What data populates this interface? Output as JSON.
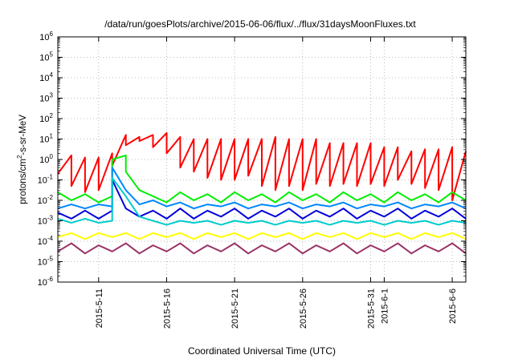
{
  "chart_data": {
    "type": "line",
    "title": "/data/run/goesPlots/archive/2015-06-06/flux/../flux/31daysMoonFluxes.txt",
    "xlabel": "Coordinated Universal Time (UTC)",
    "ylabel_parts": {
      "pre": "protons/cm",
      "sup": "2",
      "post": "-s-sr-MeV"
    },
    "yscale": "log",
    "ylim_exp": [
      -6,
      6
    ],
    "y_ticks": [
      {
        "base": "10",
        "exp": "-6",
        "v": -6
      },
      {
        "base": "10",
        "exp": "-5",
        "v": -5
      },
      {
        "base": "10",
        "exp": "-4",
        "v": -4
      },
      {
        "base": "10",
        "exp": "-3",
        "v": -3
      },
      {
        "base": "10",
        "exp": "-2",
        "v": -2
      },
      {
        "base": "10",
        "exp": "-1",
        "v": -1
      },
      {
        "base": "10",
        "exp": "0",
        "v": 0
      },
      {
        "base": "10",
        "exp": "1",
        "v": 1
      },
      {
        "base": "10",
        "exp": "2",
        "v": 2
      },
      {
        "base": "10",
        "exp": "3",
        "v": 3
      },
      {
        "base": "10",
        "exp": "4",
        "v": 4
      },
      {
        "base": "10",
        "exp": "5",
        "v": 5
      },
      {
        "base": "10",
        "exp": "6",
        "v": 6
      }
    ],
    "x_range": [
      "2015-05-08",
      "2015-06-07"
    ],
    "x_ticks": [
      {
        "label": "2015-5-11",
        "date": "2015-05-11"
      },
      {
        "label": "2015-5-16",
        "date": "2015-05-16"
      },
      {
        "label": "2015-5-21",
        "date": "2015-05-21"
      },
      {
        "label": "2015-5-26",
        "date": "2015-05-26"
      },
      {
        "label": "2015-5-31",
        "date": "2015-05-31"
      },
      {
        "label": "2015-6-1",
        "date": "2015-06-01"
      },
      {
        "label": "2015-6-6",
        "date": "2015-06-06"
      }
    ],
    "grid": true,
    "series": [
      {
        "color": "#ff0000",
        "values": [
          [
            "2015-05-08",
            -0.7
          ],
          [
            "2015-05-09",
            0.2
          ],
          [
            "2015-05-09",
            -1.3
          ],
          [
            "2015-05-10",
            0.1
          ],
          [
            "2015-05-10",
            -1.6
          ],
          [
            "2015-05-11",
            0.1
          ],
          [
            "2015-05-11",
            -1.5
          ],
          [
            "2015-05-12",
            0.3
          ],
          [
            "2015-05-12",
            -0.3
          ],
          [
            "2015-05-13",
            1.2
          ],
          [
            "2015-05-13",
            0.7
          ],
          [
            "2015-05-14",
            1.1
          ],
          [
            "2015-05-14",
            0.9
          ],
          [
            "2015-05-15",
            1.2
          ],
          [
            "2015-05-15",
            0.6
          ],
          [
            "2015-05-16",
            1.3
          ],
          [
            "2015-05-16",
            0.3
          ],
          [
            "2015-05-17",
            1.1
          ],
          [
            "2015-05-17",
            -0.4
          ],
          [
            "2015-05-18",
            1.0
          ],
          [
            "2015-05-18",
            -0.6
          ],
          [
            "2015-05-19",
            1.0
          ],
          [
            "2015-05-19",
            -0.9
          ],
          [
            "2015-05-20",
            1.0
          ],
          [
            "2015-05-20",
            -1.0
          ],
          [
            "2015-05-21",
            1.0
          ],
          [
            "2015-05-21",
            -1.0
          ],
          [
            "2015-05-22",
            1.0
          ],
          [
            "2015-05-22",
            -0.8
          ],
          [
            "2015-05-23",
            1.0
          ],
          [
            "2015-05-23",
            -1.3
          ],
          [
            "2015-05-24",
            1.1
          ],
          [
            "2015-05-24",
            -1.5
          ],
          [
            "2015-05-25",
            1.0
          ],
          [
            "2015-05-25",
            -1.3
          ],
          [
            "2015-05-26",
            1.0
          ],
          [
            "2015-05-26",
            -1.5
          ],
          [
            "2015-05-27",
            1.0
          ],
          [
            "2015-05-27",
            -1.2
          ],
          [
            "2015-05-28",
            0.8
          ],
          [
            "2015-05-28",
            -1.3
          ],
          [
            "2015-05-29",
            0.8
          ],
          [
            "2015-05-29",
            -1.2
          ],
          [
            "2015-05-30",
            0.8
          ],
          [
            "2015-05-30",
            -1.3
          ],
          [
            "2015-05-31",
            0.8
          ],
          [
            "2015-05-31",
            -1.2
          ],
          [
            "2015-06-01",
            0.6
          ],
          [
            "2015-06-01",
            -1.3
          ],
          [
            "2015-06-02",
            0.6
          ],
          [
            "2015-06-02",
            -1.0
          ],
          [
            "2015-06-03",
            0.4
          ],
          [
            "2015-06-03",
            -1.2
          ],
          [
            "2015-06-04",
            0.5
          ],
          [
            "2015-06-04",
            -1.4
          ],
          [
            "2015-06-05",
            0.5
          ],
          [
            "2015-06-05",
            -1.5
          ],
          [
            "2015-06-06",
            0.6
          ],
          [
            "2015-06-06",
            -2.0
          ],
          [
            "2015-06-07",
            0.4
          ]
        ]
      },
      {
        "color": "#00ee00",
        "values": [
          [
            "2015-05-08",
            -1.6
          ],
          [
            "2015-05-09",
            -2.0
          ],
          [
            "2015-05-10",
            -1.7
          ],
          [
            "2015-05-11",
            -2.1
          ],
          [
            "2015-05-12",
            -1.8
          ],
          [
            "2015-05-12",
            0.0
          ],
          [
            "2015-05-13",
            0.2
          ],
          [
            "2015-05-13",
            -0.6
          ],
          [
            "2015-05-14",
            -1.5
          ],
          [
            "2015-05-15",
            -1.8
          ],
          [
            "2015-05-16",
            -2.1
          ],
          [
            "2015-05-17",
            -1.6
          ],
          [
            "2015-05-18",
            -2.0
          ],
          [
            "2015-05-19",
            -1.7
          ],
          [
            "2015-05-20",
            -2.1
          ],
          [
            "2015-05-21",
            -1.6
          ],
          [
            "2015-05-22",
            -2.0
          ],
          [
            "2015-05-23",
            -1.7
          ],
          [
            "2015-05-24",
            -2.1
          ],
          [
            "2015-05-25",
            -1.6
          ],
          [
            "2015-05-26",
            -2.0
          ],
          [
            "2015-05-27",
            -1.7
          ],
          [
            "2015-05-28",
            -2.1
          ],
          [
            "2015-05-29",
            -1.6
          ],
          [
            "2015-05-30",
            -2.0
          ],
          [
            "2015-05-31",
            -1.7
          ],
          [
            "2015-06-01",
            -2.1
          ],
          [
            "2015-06-02",
            -1.6
          ],
          [
            "2015-06-03",
            -2.0
          ],
          [
            "2015-06-04",
            -1.7
          ],
          [
            "2015-06-05",
            -2.1
          ],
          [
            "2015-06-06",
            -1.6
          ],
          [
            "2015-06-07",
            -2.0
          ]
        ]
      },
      {
        "color": "#0088ff",
        "values": [
          [
            "2015-05-08",
            -2.4
          ],
          [
            "2015-05-09",
            -2.2
          ],
          [
            "2015-05-10",
            -2.4
          ],
          [
            "2015-05-11",
            -2.2
          ],
          [
            "2015-05-12",
            -2.3
          ],
          [
            "2015-05-12",
            -0.4
          ],
          [
            "2015-05-13",
            -1.5
          ],
          [
            "2015-05-14",
            -2.2
          ],
          [
            "2015-05-15",
            -2.0
          ],
          [
            "2015-05-16",
            -2.3
          ],
          [
            "2015-05-17",
            -2.1
          ],
          [
            "2015-05-18",
            -2.4
          ],
          [
            "2015-05-19",
            -2.2
          ],
          [
            "2015-05-20",
            -2.3
          ],
          [
            "2015-05-21",
            -2.1
          ],
          [
            "2015-05-22",
            -2.4
          ],
          [
            "2015-05-23",
            -2.2
          ],
          [
            "2015-05-24",
            -2.3
          ],
          [
            "2015-05-25",
            -2.1
          ],
          [
            "2015-05-26",
            -2.4
          ],
          [
            "2015-05-27",
            -2.2
          ],
          [
            "2015-05-28",
            -2.3
          ],
          [
            "2015-05-29",
            -2.1
          ],
          [
            "2015-05-30",
            -2.4
          ],
          [
            "2015-05-31",
            -2.2
          ],
          [
            "2015-06-01",
            -2.3
          ],
          [
            "2015-06-02",
            -2.1
          ],
          [
            "2015-06-03",
            -2.4
          ],
          [
            "2015-06-04",
            -2.2
          ],
          [
            "2015-06-05",
            -2.3
          ],
          [
            "2015-06-06",
            -2.1
          ],
          [
            "2015-06-07",
            -2.4
          ]
        ]
      },
      {
        "color": "#0000dd",
        "values": [
          [
            "2015-05-08",
            -2.6
          ],
          [
            "2015-05-09",
            -2.9
          ],
          [
            "2015-05-10",
            -2.5
          ],
          [
            "2015-05-11",
            -2.9
          ],
          [
            "2015-05-12",
            -2.5
          ],
          [
            "2015-05-12",
            -1.0
          ],
          [
            "2015-05-13",
            -2.4
          ],
          [
            "2015-05-14",
            -2.8
          ],
          [
            "2015-05-15",
            -2.5
          ],
          [
            "2015-05-16",
            -2.9
          ],
          [
            "2015-05-17",
            -2.4
          ],
          [
            "2015-05-18",
            -2.9
          ],
          [
            "2015-05-19",
            -2.5
          ],
          [
            "2015-05-20",
            -2.8
          ],
          [
            "2015-05-21",
            -2.4
          ],
          [
            "2015-05-22",
            -2.9
          ],
          [
            "2015-05-23",
            -2.5
          ],
          [
            "2015-05-24",
            -2.8
          ],
          [
            "2015-05-25",
            -2.4
          ],
          [
            "2015-05-26",
            -2.9
          ],
          [
            "2015-05-27",
            -2.5
          ],
          [
            "2015-05-28",
            -2.8
          ],
          [
            "2015-05-29",
            -2.4
          ],
          [
            "2015-05-30",
            -2.9
          ],
          [
            "2015-05-31",
            -2.5
          ],
          [
            "2015-06-01",
            -2.8
          ],
          [
            "2015-06-02",
            -2.4
          ],
          [
            "2015-06-03",
            -2.9
          ],
          [
            "2015-06-04",
            -2.5
          ],
          [
            "2015-06-05",
            -2.8
          ],
          [
            "2015-06-06",
            -2.4
          ],
          [
            "2015-06-07",
            -2.9
          ]
        ]
      },
      {
        "color": "#00cccc",
        "values": [
          [
            "2015-05-08",
            -2.9
          ],
          [
            "2015-05-09",
            -3.1
          ],
          [
            "2015-05-10",
            -2.9
          ],
          [
            "2015-05-11",
            -3.1
          ],
          [
            "2015-05-12",
            -3.0
          ],
          [
            "2015-05-12",
            -0.9
          ],
          [
            "2015-05-13",
            -1.8
          ],
          [
            "2015-05-14",
            -2.8
          ],
          [
            "2015-05-15",
            -3.0
          ],
          [
            "2015-05-16",
            -3.2
          ],
          [
            "2015-05-17",
            -3.0
          ],
          [
            "2015-05-18",
            -3.1
          ],
          [
            "2015-05-19",
            -3.0
          ],
          [
            "2015-05-20",
            -3.2
          ],
          [
            "2015-05-21",
            -3.0
          ],
          [
            "2015-05-22",
            -3.1
          ],
          [
            "2015-05-23",
            -3.0
          ],
          [
            "2015-05-24",
            -3.2
          ],
          [
            "2015-05-25",
            -3.0
          ],
          [
            "2015-05-26",
            -3.1
          ],
          [
            "2015-05-27",
            -3.0
          ],
          [
            "2015-05-28",
            -3.2
          ],
          [
            "2015-05-29",
            -3.0
          ],
          [
            "2015-05-30",
            -3.1
          ],
          [
            "2015-05-31",
            -3.0
          ],
          [
            "2015-06-01",
            -3.2
          ],
          [
            "2015-06-02",
            -3.0
          ],
          [
            "2015-06-03",
            -3.1
          ],
          [
            "2015-06-04",
            -3.0
          ],
          [
            "2015-06-05",
            -3.2
          ],
          [
            "2015-06-06",
            -3.0
          ],
          [
            "2015-06-07",
            -3.1
          ]
        ]
      },
      {
        "color": "#ffff00",
        "values": [
          [
            "2015-05-08",
            -3.8
          ],
          [
            "2015-05-09",
            -3.6
          ],
          [
            "2015-05-10",
            -3.9
          ],
          [
            "2015-05-11",
            -3.6
          ],
          [
            "2015-05-12",
            -3.8
          ],
          [
            "2015-05-13",
            -3.6
          ],
          [
            "2015-05-14",
            -3.9
          ],
          [
            "2015-05-15",
            -3.6
          ],
          [
            "2015-05-16",
            -3.8
          ],
          [
            "2015-05-17",
            -3.6
          ],
          [
            "2015-05-18",
            -3.9
          ],
          [
            "2015-05-19",
            -3.6
          ],
          [
            "2015-05-20",
            -3.8
          ],
          [
            "2015-05-21",
            -3.6
          ],
          [
            "2015-05-22",
            -3.9
          ],
          [
            "2015-05-23",
            -3.6
          ],
          [
            "2015-05-24",
            -3.8
          ],
          [
            "2015-05-25",
            -3.6
          ],
          [
            "2015-05-26",
            -3.9
          ],
          [
            "2015-05-27",
            -3.6
          ],
          [
            "2015-05-28",
            -3.8
          ],
          [
            "2015-05-29",
            -3.6
          ],
          [
            "2015-05-30",
            -3.9
          ],
          [
            "2015-05-31",
            -3.6
          ],
          [
            "2015-06-01",
            -3.8
          ],
          [
            "2015-06-02",
            -3.6
          ],
          [
            "2015-06-03",
            -3.9
          ],
          [
            "2015-06-04",
            -3.6
          ],
          [
            "2015-06-05",
            -3.8
          ],
          [
            "2015-06-06",
            -3.6
          ],
          [
            "2015-06-07",
            -3.9
          ]
        ]
      },
      {
        "color": "#993366",
        "values": [
          [
            "2015-05-08",
            -4.5
          ],
          [
            "2015-05-09",
            -4.1
          ],
          [
            "2015-05-10",
            -4.6
          ],
          [
            "2015-05-11",
            -4.2
          ],
          [
            "2015-05-12",
            -4.5
          ],
          [
            "2015-05-13",
            -4.1
          ],
          [
            "2015-05-14",
            -4.6
          ],
          [
            "2015-05-15",
            -4.2
          ],
          [
            "2015-05-16",
            -4.5
          ],
          [
            "2015-05-17",
            -4.1
          ],
          [
            "2015-05-18",
            -4.6
          ],
          [
            "2015-05-19",
            -4.2
          ],
          [
            "2015-05-20",
            -4.5
          ],
          [
            "2015-05-21",
            -4.1
          ],
          [
            "2015-05-22",
            -4.6
          ],
          [
            "2015-05-23",
            -4.2
          ],
          [
            "2015-05-24",
            -4.5
          ],
          [
            "2015-05-25",
            -4.1
          ],
          [
            "2015-05-26",
            -4.6
          ],
          [
            "2015-05-27",
            -4.2
          ],
          [
            "2015-05-28",
            -4.5
          ],
          [
            "2015-05-29",
            -4.1
          ],
          [
            "2015-05-30",
            -4.6
          ],
          [
            "2015-05-31",
            -4.2
          ],
          [
            "2015-06-01",
            -4.5
          ],
          [
            "2015-06-02",
            -4.1
          ],
          [
            "2015-06-03",
            -4.6
          ],
          [
            "2015-06-04",
            -4.2
          ],
          [
            "2015-06-05",
            -4.5
          ],
          [
            "2015-06-06",
            -4.1
          ],
          [
            "2015-06-07",
            -4.6
          ]
        ]
      }
    ]
  }
}
